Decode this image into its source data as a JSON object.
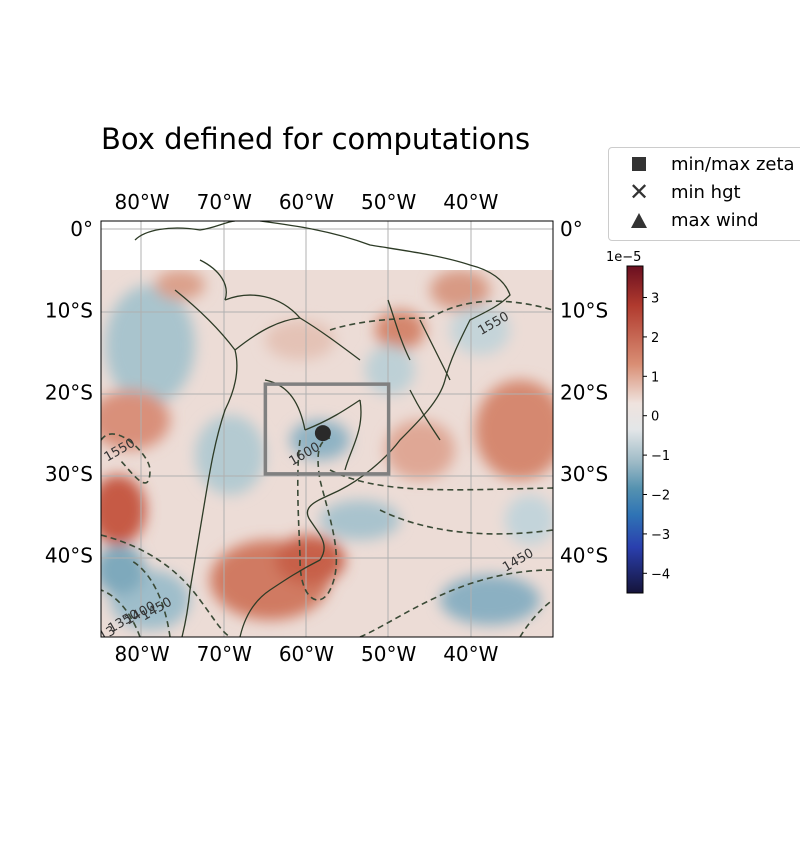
{
  "title": "Box defined for computations",
  "legend": {
    "items": [
      {
        "label": "min/max zeta",
        "icon": "square-marker-icon"
      },
      {
        "label": "min hgt",
        "icon": "x-marker-icon"
      },
      {
        "label": "max wind",
        "icon": "triangle-marker-icon"
      }
    ]
  },
  "map": {
    "extent": {
      "lon": [
        -85,
        -30
      ],
      "lat": [
        -50,
        1
      ]
    },
    "data_extent": {
      "lon": [
        -85,
        -30
      ],
      "lat": [
        -50,
        -5
      ]
    },
    "lon_ticks": [
      {
        "value": -80,
        "label": "80°W"
      },
      {
        "value": -70,
        "label": "70°W"
      },
      {
        "value": -60,
        "label": "60°W"
      },
      {
        "value": -50,
        "label": "50°W"
      },
      {
        "value": -40,
        "label": "40°W"
      }
    ],
    "lat_ticks": [
      {
        "value": 0,
        "label": "0°"
      },
      {
        "value": -10,
        "label": "10°S"
      },
      {
        "value": -20,
        "label": "20°S"
      },
      {
        "value": -30,
        "label": "30°S"
      },
      {
        "value": -40,
        "label": "40°S"
      }
    ],
    "box": {
      "lon_min": -65,
      "lon_max": -50,
      "lat_min": -30,
      "lat_max": -19
    },
    "center_point": {
      "lon": -58,
      "lat": -25
    },
    "contour_labels": [
      {
        "text": "1550",
        "lon": -37,
        "lat": -12
      },
      {
        "text": "1550",
        "lon": -82.5,
        "lat": -27.5
      },
      {
        "text": "1600",
        "lon": -60,
        "lat": -28
      },
      {
        "text": "1450",
        "lon": -34,
        "lat": -41
      },
      {
        "text": "1450",
        "lon": -78,
        "lat": -47
      },
      {
        "text": "1400",
        "lon": -80,
        "lat": -47.5
      },
      {
        "text": "1350",
        "lon": -82,
        "lat": -48.5
      },
      {
        "text": "13",
        "lon": -84,
        "lat": -50
      }
    ]
  },
  "colorbar": {
    "exponent_label": "1e−5",
    "vmin": -4.5,
    "vmax": 3.8,
    "ticks": [
      {
        "value": 3,
        "label": "3"
      },
      {
        "value": 2,
        "label": "2"
      },
      {
        "value": 1,
        "label": "1"
      },
      {
        "value": 0,
        "label": "0"
      },
      {
        "value": -1,
        "label": "−1"
      },
      {
        "value": -2,
        "label": "−2"
      },
      {
        "value": -3,
        "label": "−3"
      },
      {
        "value": -4,
        "label": "−4"
      }
    ]
  },
  "colors": {
    "box": "#808080",
    "coast": "#2d3b26",
    "contour": "#3a4a36",
    "point": "#2a2a2a"
  }
}
